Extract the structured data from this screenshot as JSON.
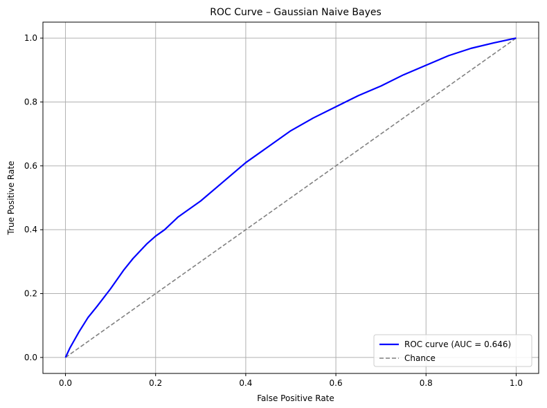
{
  "chart_data": {
    "type": "line",
    "title": "ROC Curve – Gaussian Naive Bayes",
    "xlabel": "False Positive Rate",
    "ylabel": "True Positive Rate",
    "xlim": [
      -0.05,
      1.05
    ],
    "ylim": [
      -0.05,
      1.05
    ],
    "xticks": [
      "0.0",
      "0.2",
      "0.4",
      "0.6",
      "0.8",
      "1.0"
    ],
    "yticks": [
      "0.0",
      "0.2",
      "0.4",
      "0.6",
      "0.8",
      "1.0"
    ],
    "grid": true,
    "legend_position": "lower-right",
    "series": [
      {
        "name": "ROC curve (AUC = 0.646)",
        "color": "#0000ff",
        "style": "solid",
        "x": [
          0.0,
          0.01,
          0.02,
          0.03,
          0.05,
          0.07,
          0.1,
          0.13,
          0.15,
          0.18,
          0.2,
          0.22,
          0.25,
          0.3,
          0.35,
          0.4,
          0.45,
          0.5,
          0.55,
          0.6,
          0.65,
          0.7,
          0.75,
          0.8,
          0.85,
          0.9,
          0.95,
          1.0
        ],
        "y": [
          0.0,
          0.03,
          0.055,
          0.08,
          0.125,
          0.16,
          0.215,
          0.275,
          0.31,
          0.355,
          0.38,
          0.4,
          0.44,
          0.49,
          0.55,
          0.61,
          0.66,
          0.71,
          0.75,
          0.785,
          0.82,
          0.85,
          0.885,
          0.915,
          0.945,
          0.968,
          0.985,
          1.0
        ]
      },
      {
        "name": "Chance",
        "color": "#808080",
        "style": "dashed",
        "x": [
          0.0,
          1.0
        ],
        "y": [
          0.0,
          1.0
        ]
      }
    ]
  }
}
